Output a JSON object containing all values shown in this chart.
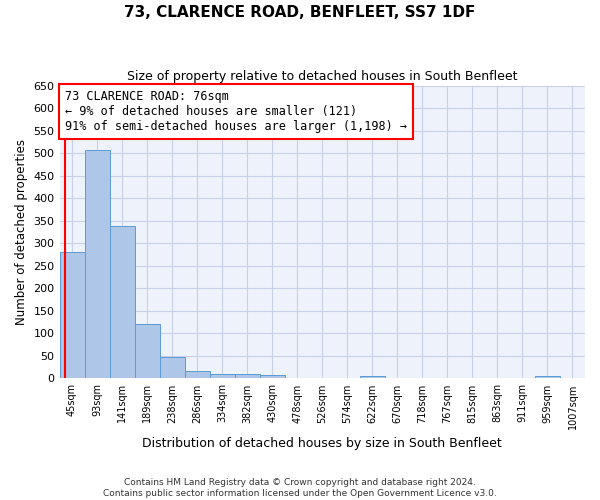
{
  "title": "73, CLARENCE ROAD, BENFLEET, SS7 1DF",
  "subtitle": "Size of property relative to detached houses in South Benfleet",
  "xlabel": "Distribution of detached houses by size in South Benfleet",
  "ylabel": "Number of detached properties",
  "footer_line1": "Contains HM Land Registry data © Crown copyright and database right 2024.",
  "footer_line2": "Contains public sector information licensed under the Open Government Licence v3.0.",
  "bar_labels": [
    "45sqm",
    "93sqm",
    "141sqm",
    "189sqm",
    "238sqm",
    "286sqm",
    "334sqm",
    "382sqm",
    "430sqm",
    "478sqm",
    "526sqm",
    "574sqm",
    "622sqm",
    "670sqm",
    "718sqm",
    "767sqm",
    "815sqm",
    "863sqm",
    "911sqm",
    "959sqm",
    "1007sqm"
  ],
  "bar_values": [
    280,
    507,
    338,
    120,
    47,
    16,
    10,
    10,
    7,
    0,
    0,
    0,
    6,
    0,
    0,
    0,
    0,
    0,
    0,
    6,
    0
  ],
  "bar_color": "#aec6e8",
  "bar_edge_color": "#5b9bd5",
  "ylim": [
    0,
    650
  ],
  "yticks": [
    0,
    50,
    100,
    150,
    200,
    250,
    300,
    350,
    400,
    450,
    500,
    550,
    600,
    650
  ],
  "annotation_line1": "73 CLARENCE ROAD: 76sqm",
  "annotation_line2": "← 9% of detached houses are smaller (121)",
  "annotation_line3": "91% of semi-detached houses are larger (1,198) →",
  "vline_x_index": -0.28,
  "background_color": "#eef2fa",
  "grid_color": "#c8d0e8"
}
